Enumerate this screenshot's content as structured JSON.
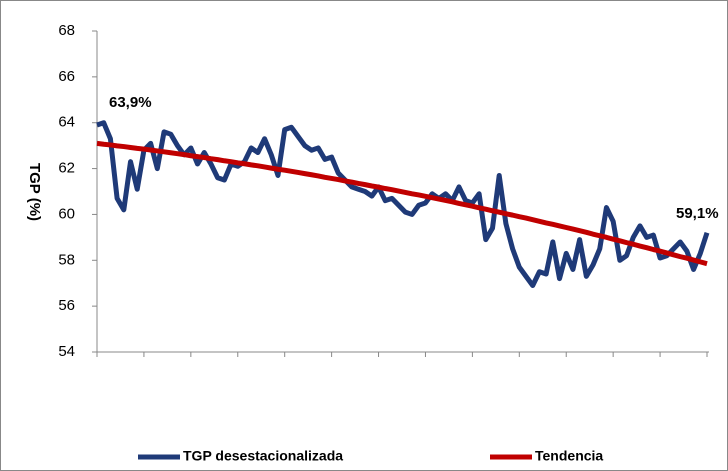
{
  "chart_data": {
    "type": "line",
    "y_label": "TGP (%)",
    "categories": [
      null,
      null,
      null,
      null,
      null,
      null,
      null,
      null,
      null,
      null,
      null,
      null,
      null,
      null,
      null,
      null,
      null,
      null,
      null,
      null,
      null,
      null,
      null,
      null,
      null,
      null,
      null,
      null,
      null,
      null,
      null,
      null,
      null,
      null,
      null,
      null,
      null,
      null,
      null,
      null,
      null,
      null,
      null,
      null,
      null,
      null,
      null,
      null,
      null,
      null,
      null,
      null,
      null,
      null,
      null,
      null,
      null,
      null,
      null,
      null,
      null,
      null,
      null,
      null,
      null,
      null,
      null,
      null,
      null,
      null,
      null,
      null,
      null,
      null,
      null,
      null,
      null,
      null,
      null,
      null,
      null,
      null,
      null,
      null,
      null,
      null,
      null,
      null,
      null,
      null,
      null,
      null
    ],
    "series": [
      {
        "name": "TGP desestacionalizada",
        "color": "#1f3a78",
        "values": [
          63.9,
          64.0,
          63.3,
          60.7,
          60.2,
          62.3,
          61.1,
          62.8,
          63.1,
          62.0,
          63.6,
          63.5,
          63.0,
          62.6,
          62.9,
          62.2,
          62.7,
          62.2,
          61.6,
          61.5,
          62.2,
          62.1,
          62.3,
          62.9,
          62.7,
          63.3,
          62.6,
          61.7,
          63.7,
          63.8,
          63.4,
          63.0,
          62.8,
          62.9,
          62.4,
          62.5,
          61.8,
          61.5,
          61.2,
          61.1,
          61.0,
          60.8,
          61.2,
          60.6,
          60.7,
          60.4,
          60.1,
          60.0,
          60.4,
          60.5,
          60.9,
          60.7,
          60.9,
          60.6,
          61.2,
          60.6,
          60.5,
          60.9,
          58.9,
          59.4,
          61.7,
          59.6,
          58.5,
          57.7,
          57.3,
          56.9,
          57.5,
          57.4,
          58.8,
          57.2,
          58.3,
          57.6,
          58.9,
          57.3,
          57.8,
          58.5,
          60.3,
          59.7,
          58.0,
          58.2,
          59.0,
          59.5,
          59.0,
          59.1,
          58.1,
          58.2,
          58.5,
          58.8,
          58.4,
          57.6,
          58.3,
          59.2
        ]
      },
      {
        "name": "Tendencia",
        "color": "#c00000",
        "values": [
          63.1,
          63.06,
          63.03,
          62.99,
          62.96,
          62.92,
          62.88,
          62.85,
          62.81,
          62.77,
          62.73,
          62.69,
          62.65,
          62.61,
          62.56,
          62.52,
          62.48,
          62.43,
          62.39,
          62.34,
          62.3,
          62.25,
          62.21,
          62.16,
          62.12,
          62.07,
          62.02,
          61.97,
          61.93,
          61.88,
          61.83,
          61.78,
          61.73,
          61.68,
          61.62,
          61.57,
          61.52,
          61.46,
          61.41,
          61.35,
          61.3,
          61.24,
          61.19,
          61.13,
          61.08,
          61.02,
          60.96,
          60.9,
          60.85,
          60.79,
          60.73,
          60.67,
          60.61,
          60.55,
          60.48,
          60.42,
          60.36,
          60.29,
          60.23,
          60.16,
          60.1,
          60.03,
          59.97,
          59.9,
          59.84,
          59.77,
          59.7,
          59.63,
          59.57,
          59.5,
          59.43,
          59.36,
          59.29,
          59.22,
          59.14,
          59.07,
          59.0,
          58.92,
          58.85,
          58.77,
          58.7,
          58.62,
          58.55,
          58.47,
          58.4,
          58.32,
          58.24,
          58.16,
          58.09,
          58.01,
          57.93,
          57.85
        ]
      }
    ],
    "annotations": [
      "63,9%",
      "59,1%"
    ],
    "ylim": [
      54,
      68
    ],
    "yticks": [
      54,
      56,
      58,
      60,
      62,
      64,
      66,
      68
    ],
    "grid": false
  }
}
